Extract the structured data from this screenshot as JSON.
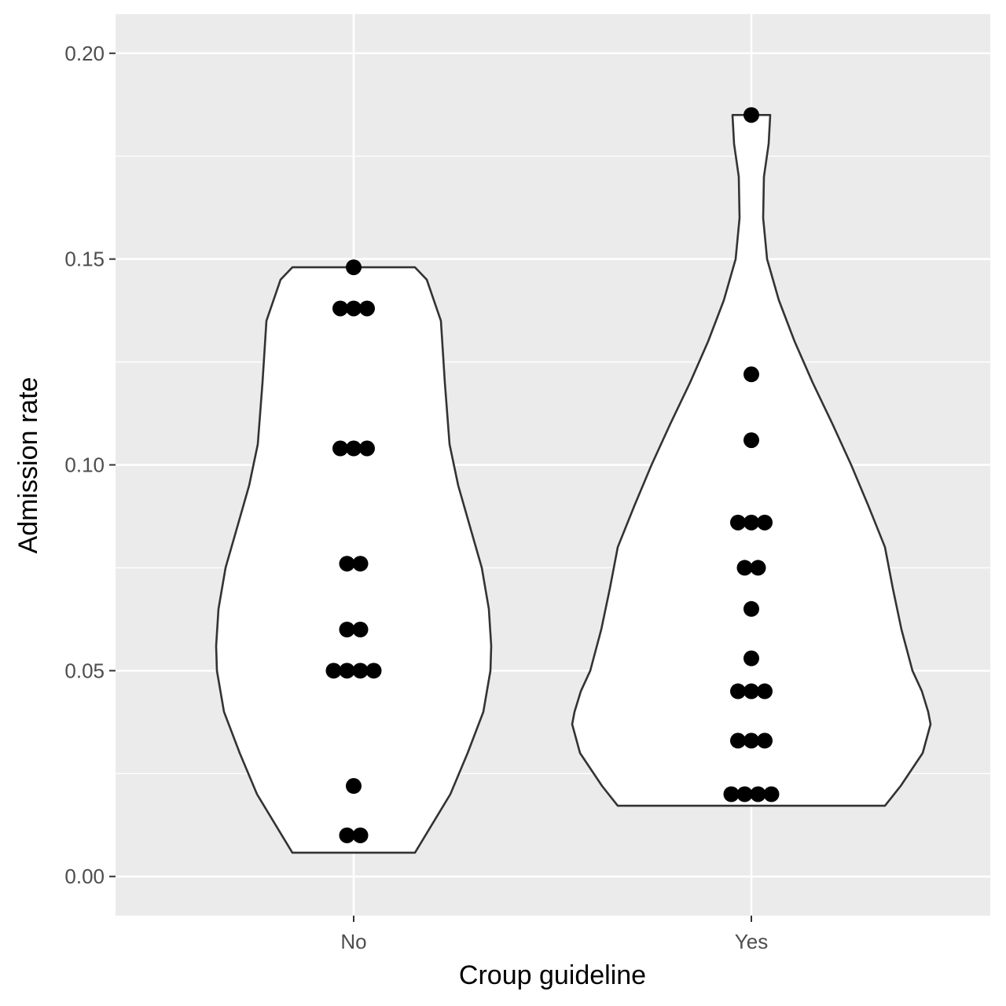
{
  "chart_data": {
    "type": "violin",
    "xlabel": "Croup guideline",
    "ylabel": "Admission rate",
    "categories": [
      "No",
      "Yes"
    ],
    "ylim": [
      -0.0095,
      0.2095
    ],
    "yticks": [
      "0.00",
      "0.05",
      "0.10",
      "0.15",
      "0.20"
    ],
    "grid": true,
    "groups": [
      {
        "name": "No",
        "points": [
          0.148,
          0.138,
          0.138,
          0.138,
          0.104,
          0.104,
          0.104,
          0.076,
          0.076,
          0.06,
          0.06,
          0.05,
          0.05,
          0.05,
          0.05,
          0.022,
          0.01,
          0.01
        ],
        "violin_range": [
          0.0058,
          0.148
        ]
      },
      {
        "name": "Yes",
        "points": [
          0.185,
          0.122,
          0.106,
          0.086,
          0.086,
          0.086,
          0.075,
          0.075,
          0.065,
          0.053,
          0.045,
          0.045,
          0.045,
          0.033,
          0.033,
          0.033,
          0.02,
          0.02,
          0.02,
          0.02
        ],
        "violin_range": [
          0.0172,
          0.185
        ]
      }
    ],
    "colors": {
      "panel_background": "#ebebeb",
      "grid": "#ffffff",
      "violin_fill": "#ffffff",
      "violin_outline": "#333333",
      "points": "#000000"
    }
  }
}
